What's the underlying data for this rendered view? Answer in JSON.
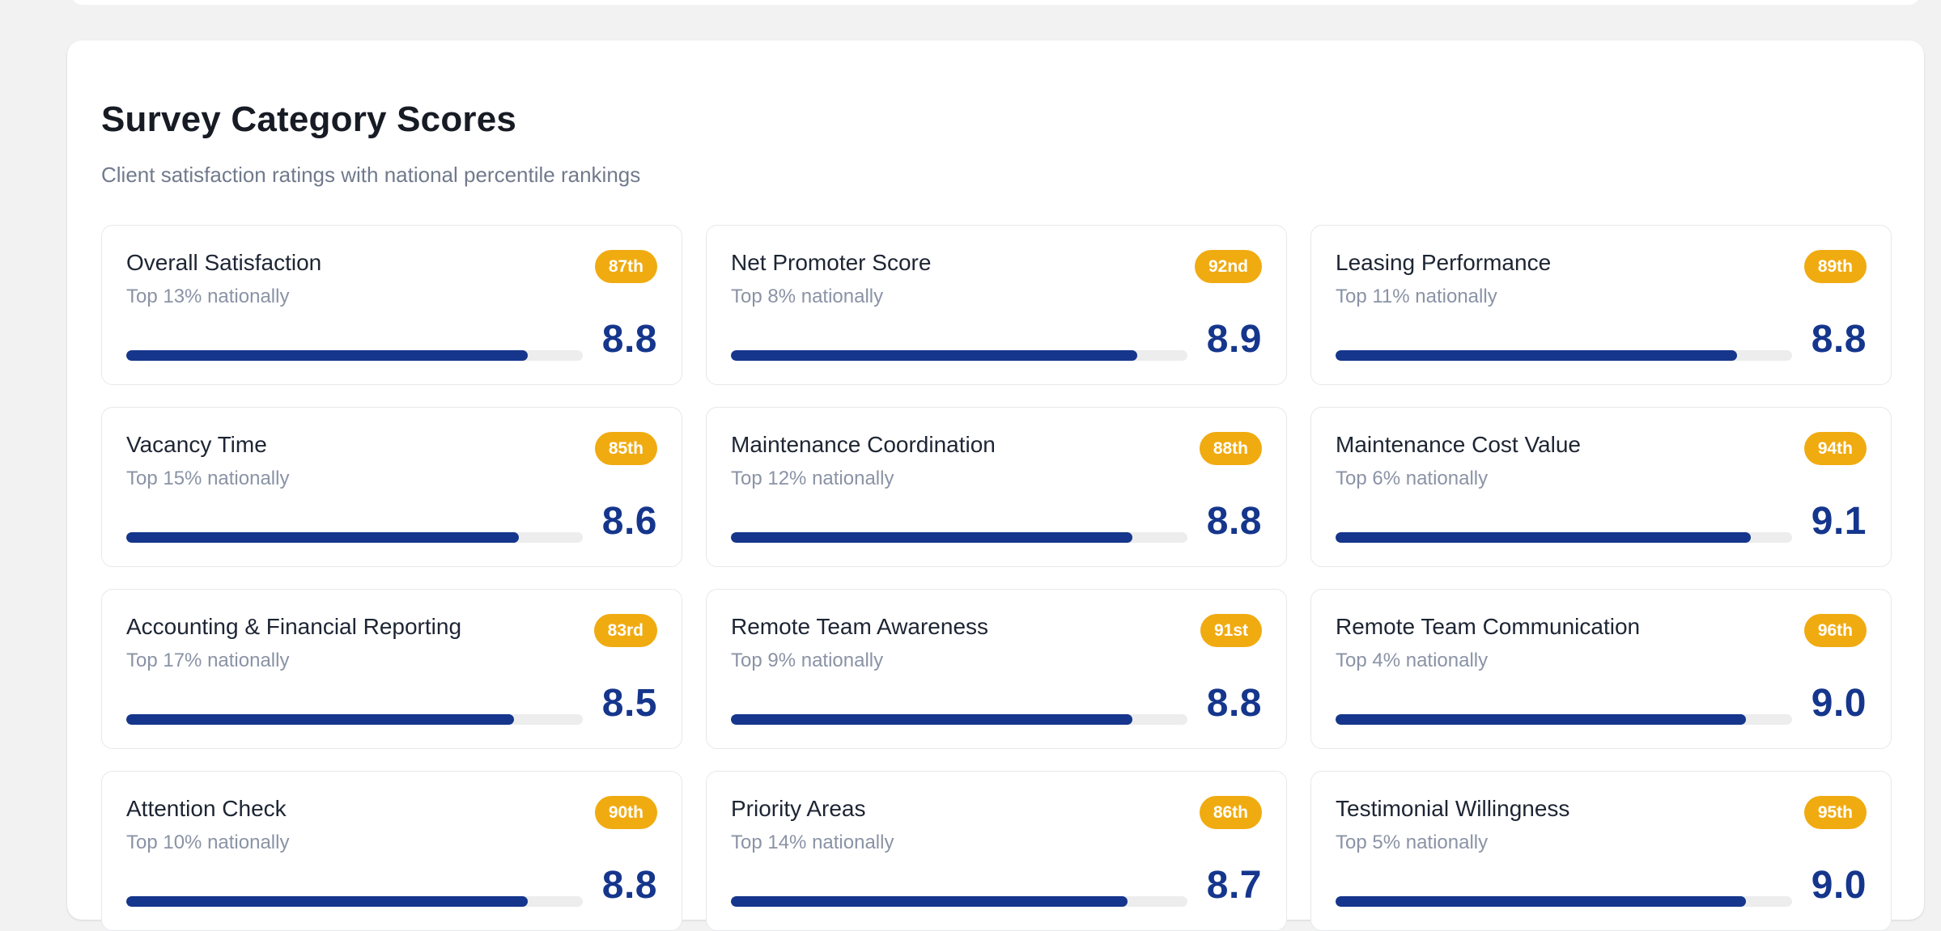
{
  "panel": {
    "title": "Survey Category Scores",
    "subtitle": "Client satisfaction ratings with national percentile rankings"
  },
  "colors": {
    "accent_navy": "#15368c",
    "badge_amber": "#f0ab11",
    "track_gray": "#ededee"
  },
  "cards": [
    {
      "title": "Overall Satisfaction",
      "subtitle": "Top 13% nationally",
      "percentile": "87th",
      "score": "8.8",
      "bar_pct": 88
    },
    {
      "title": "Net Promoter Score",
      "subtitle": "Top 8% nationally",
      "percentile": "92nd",
      "score": "8.9",
      "bar_pct": 89
    },
    {
      "title": "Leasing Performance",
      "subtitle": "Top 11% nationally",
      "percentile": "89th",
      "score": "8.8",
      "bar_pct": 88
    },
    {
      "title": "Vacancy Time",
      "subtitle": "Top 15% nationally",
      "percentile": "85th",
      "score": "8.6",
      "bar_pct": 86
    },
    {
      "title": "Maintenance Coordination",
      "subtitle": "Top 12% nationally",
      "percentile": "88th",
      "score": "8.8",
      "bar_pct": 88
    },
    {
      "title": "Maintenance Cost Value",
      "subtitle": "Top 6% nationally",
      "percentile": "94th",
      "score": "9.1",
      "bar_pct": 91
    },
    {
      "title": "Accounting & Financial Reporting",
      "subtitle": "Top 17% nationally",
      "percentile": "83rd",
      "score": "8.5",
      "bar_pct": 85
    },
    {
      "title": "Remote Team Awareness",
      "subtitle": "Top 9% nationally",
      "percentile": "91st",
      "score": "8.8",
      "bar_pct": 88
    },
    {
      "title": "Remote Team Communication",
      "subtitle": "Top 4% nationally",
      "percentile": "96th",
      "score": "9.0",
      "bar_pct": 90
    },
    {
      "title": "Attention Check",
      "subtitle": "Top 10% nationally",
      "percentile": "90th",
      "score": "8.8",
      "bar_pct": 88
    },
    {
      "title": "Priority Areas",
      "subtitle": "Top 14% nationally",
      "percentile": "86th",
      "score": "8.7",
      "bar_pct": 87
    },
    {
      "title": "Testimonial Willingness",
      "subtitle": "Top 5% nationally",
      "percentile": "95th",
      "score": "9.0",
      "bar_pct": 90
    }
  ]
}
